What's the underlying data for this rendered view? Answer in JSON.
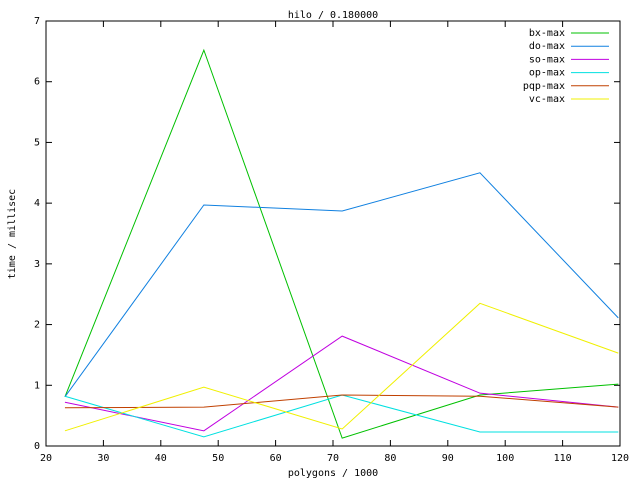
{
  "chart_data": {
    "type": "line",
    "title": "hilo / 0.180000",
    "xlabel": "polygons / 1000",
    "ylabel": "time / millisec",
    "x": [
      23.3,
      47.5,
      71.6,
      95.6,
      119.7
    ],
    "series": [
      {
        "name": "bx-max",
        "color": "#00c000",
        "values": [
          0.81,
          6.52,
          0.13,
          0.84,
          1.02
        ]
      },
      {
        "name": "do-max",
        "color": "#1080e0",
        "values": [
          0.81,
          3.97,
          3.87,
          4.5,
          2.11
        ]
      },
      {
        "name": "so-max",
        "color": "#c000e0",
        "values": [
          0.72,
          0.25,
          1.81,
          0.87,
          0.64
        ]
      },
      {
        "name": "op-max",
        "color": "#00e0e0",
        "values": [
          0.82,
          0.15,
          0.84,
          0.23,
          0.23
        ]
      },
      {
        "name": "pqp-max",
        "color": "#c04000",
        "values": [
          0.63,
          0.64,
          0.84,
          0.82,
          0.64
        ]
      },
      {
        "name": "vc-max",
        "color": "#f0f000",
        "values": [
          0.25,
          0.97,
          0.28,
          2.35,
          1.53
        ]
      }
    ],
    "xlim": [
      20,
      120
    ],
    "xticks": [
      20,
      30,
      40,
      50,
      60,
      70,
      80,
      90,
      100,
      110,
      120
    ],
    "ylim": [
      0,
      7
    ],
    "yticks": [
      0,
      1,
      2,
      3,
      4,
      5,
      6,
      7
    ],
    "legend": "top-right"
  }
}
